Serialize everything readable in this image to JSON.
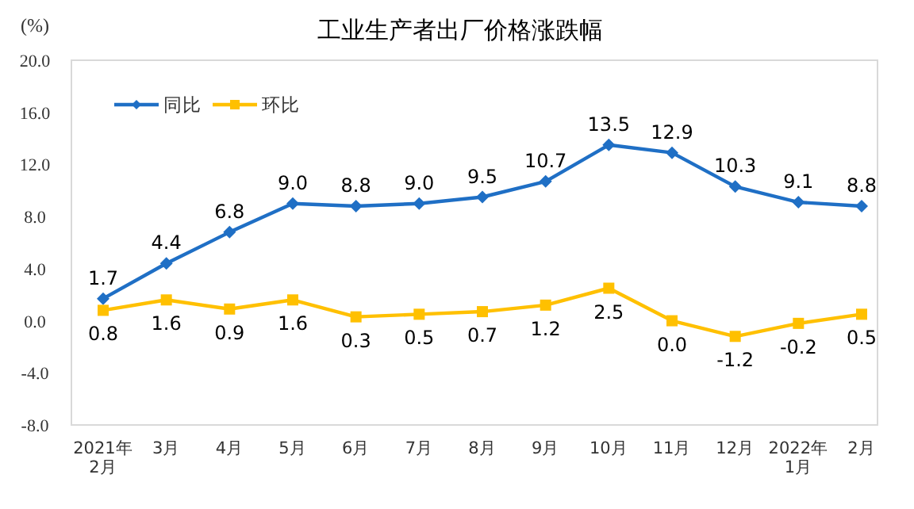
{
  "chart_data": {
    "type": "line",
    "title": "工业生产者出厂价格涨跌幅",
    "ylabel": "(%)",
    "categories": [
      "2021年\n2月",
      "3月",
      "4月",
      "5月",
      "6月",
      "7月",
      "8月",
      "9月",
      "10月",
      "11月",
      "12月",
      "2022年\n1月",
      "2月"
    ],
    "series": [
      {
        "name": "同比",
        "color": "#1f6fc5",
        "marker": "diamond",
        "values": [
          1.7,
          4.4,
          6.8,
          9.0,
          8.8,
          9.0,
          9.5,
          10.7,
          13.5,
          12.9,
          10.3,
          9.1,
          8.8
        ],
        "value_labels": [
          "1.7",
          "4.4",
          "6.8",
          "9.0",
          "8.8",
          "9.0",
          "9.5",
          "10.7",
          "13.5",
          "12.9",
          "10.3",
          "9.1",
          "8.8"
        ]
      },
      {
        "name": "环比",
        "color": "#ffc000",
        "marker": "square",
        "values": [
          0.8,
          1.6,
          0.9,
          1.6,
          0.3,
          0.5,
          0.7,
          1.2,
          2.5,
          0.0,
          -1.2,
          -0.2,
          0.5
        ],
        "value_labels": [
          "0.8",
          "1.6",
          "0.9",
          "1.6",
          "0.3",
          "0.5",
          "0.7",
          "1.2",
          "2.5",
          "0.0",
          "-1.2",
          "-0.2",
          "0.5"
        ]
      }
    ],
    "ylim": [
      -8,
      20
    ],
    "yticks": [
      {
        "value": -8,
        "label": "-8.0"
      },
      {
        "value": -4,
        "label": "-4.0"
      },
      {
        "value": 0,
        "label": "0.0"
      },
      {
        "value": 4,
        "label": "4.0"
      },
      {
        "value": 8,
        "label": "8.0"
      },
      {
        "value": 12,
        "label": "12.0"
      },
      {
        "value": 16,
        "label": "16.0"
      },
      {
        "value": 20,
        "label": "20.0"
      }
    ],
    "grid": false,
    "legend": "top left",
    "line_style": "solid"
  }
}
